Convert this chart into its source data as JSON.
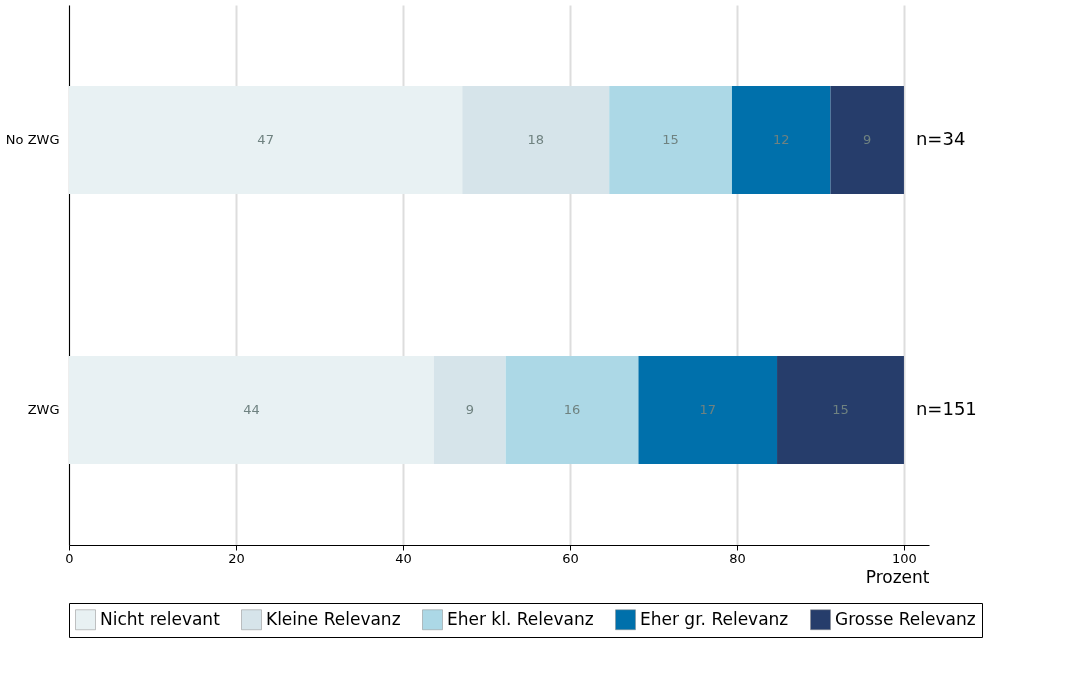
{
  "chart_data": {
    "type": "bar",
    "orientation": "horizontal",
    "stacked": true,
    "categories": [
      "No ZWG",
      "ZWG"
    ],
    "series": [
      {
        "name": "Nicht relevant",
        "color": "#e8f1f3",
        "values": [
          47.1,
          43.7
        ],
        "value_labels": [
          "47",
          "44"
        ]
      },
      {
        "name": "Kleine Relevanz",
        "color": "#d6e4ea",
        "values": [
          17.6,
          8.6
        ],
        "value_labels": [
          "18",
          "9"
        ]
      },
      {
        "name": "Eher kl. Relevanz",
        "color": "#acd8e6",
        "values": [
          14.7,
          15.9
        ],
        "value_labels": [
          "15",
          "16"
        ]
      },
      {
        "name": "Eher gr. Relevanz",
        "color": "#0070ab",
        "values": [
          11.8,
          16.6
        ],
        "value_labels": [
          "12",
          "17"
        ]
      },
      {
        "name": "Grosse Relevanz",
        "color": "#263d6b",
        "values": [
          8.8,
          15.2
        ],
        "value_labels": [
          "9",
          "15"
        ]
      }
    ],
    "xlim": [
      0,
      103
    ],
    "xticks": [
      0,
      20,
      40,
      60,
      80,
      100
    ],
    "xlabel": "Prozent",
    "grid": "x",
    "legend": "bottom",
    "annotations": [
      {
        "text": "n=34",
        "x": 100,
        "y": "No ZWG"
      },
      {
        "text": "n=151",
        "x": 100,
        "y": "ZWG"
      }
    ]
  }
}
